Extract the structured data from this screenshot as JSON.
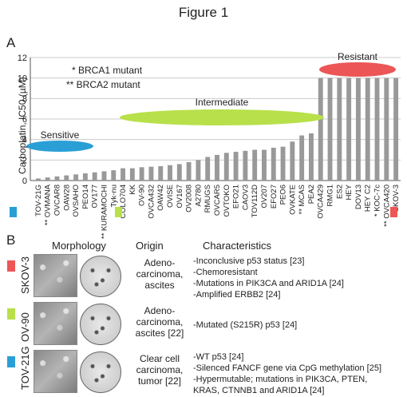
{
  "figure_title": "Figure 1",
  "panel_a": "A",
  "panel_b": "B",
  "legend": {
    "brca1": "* BRCA1 mutant",
    "brca2": "** BRCA2 mutant"
  },
  "groups": {
    "sensitive": "Sensitive",
    "intermediate": "Intermediate",
    "resistant": "Resistant"
  },
  "colors": {
    "sensitive": "#2a9fd6",
    "intermediate": "#b8e04a",
    "resistant": "#ec5656",
    "bar": "#999999"
  },
  "chart_data": {
    "type": "bar",
    "ylabel": "Carboplatin, IC50 (µM)",
    "ylim": [
      0,
      12
    ],
    "yticks": [
      0,
      2,
      4,
      6,
      8,
      10,
      12
    ],
    "categories": [
      "TOV-21G",
      "** OVMANA",
      "OVCAR8",
      "OAW28",
      "OVSAHO",
      "PEO14",
      "OV177",
      "** KURAMOCHI",
      "Tyk-nu",
      "COLO704",
      "KK",
      "OV-90",
      "OVCA432",
      "OAW42",
      "OVISE",
      "OV167",
      "OV2008",
      "A2780",
      "RMUGS",
      "OVCAR5",
      "OVTOKO",
      "EFO21",
      "CAOV3",
      "TOV112D",
      "OV207",
      "EFO27",
      "PEO6",
      "OVKATE",
      "** MCAS",
      "PEA2",
      "OVCA429",
      "RMG1",
      "ES2",
      "HEY",
      "DOV13",
      "HEY C2",
      "* KOC-7c",
      "** OVCA420",
      "SKOV-3"
    ],
    "values": [
      0.2,
      0.3,
      0.4,
      0.5,
      0.6,
      0.7,
      0.8,
      0.9,
      1.0,
      1.2,
      1.2,
      1.3,
      1.35,
      1.4,
      1.5,
      1.6,
      1.8,
      2.0,
      2.3,
      2.5,
      2.7,
      2.8,
      2.9,
      3.0,
      3.0,
      3.2,
      3.3,
      3.8,
      4.4,
      4.6,
      10,
      10,
      10,
      10,
      10,
      10,
      10,
      10,
      10
    ],
    "series": [
      {
        "values": [
          0.2,
          0.3,
          0.4,
          0.5,
          0.6,
          0.7,
          0.8,
          0.9,
          1.0,
          1.2,
          1.2,
          1.3,
          1.35,
          1.4,
          1.5,
          1.6,
          1.8,
          2.0,
          2.3,
          2.5,
          2.7,
          2.8,
          2.9,
          3.0,
          3.0,
          3.2,
          3.3,
          3.8,
          4.4,
          4.6,
          10,
          10,
          10,
          10,
          10,
          10,
          10,
          10,
          10
        ]
      }
    ],
    "grid": true
  },
  "panel_b_data": {
    "headers": {
      "morphology": "Morphology",
      "origin": "Origin",
      "characteristics": "Characteristics"
    },
    "rows": [
      {
        "name": "SKOV-3",
        "color": "#ec5656",
        "origin": [
          "Adeno-",
          "carcinoma,",
          "ascites"
        ],
        "characteristics": [
          "-Inconclusive p53 status [23]",
          "-Chemoresistant",
          "-Mutations in PIK3CA and ARID1A [24]",
          "-Amplified ERBB2 [24]"
        ]
      },
      {
        "name": "OV-90",
        "color": "#b8e04a",
        "origin": [
          "Adeno-",
          "carcinoma,",
          "ascites [22]"
        ],
        "characteristics": [
          "-Mutated (S215R) p53 [24]"
        ]
      },
      {
        "name": "TOV-21G",
        "color": "#2a9fd6",
        "origin": [
          "Clear cell",
          "carcinoma,",
          "tumor [22]"
        ],
        "characteristics": [
          "-WT p53 [24]",
          "-Silenced FANCF gene via CpG methylation [25]",
          "-Hypermutable; mutations in PIK3CA, PTEN,",
          "KRAS, CTNNB1 and ARID1A [24]"
        ]
      }
    ]
  }
}
